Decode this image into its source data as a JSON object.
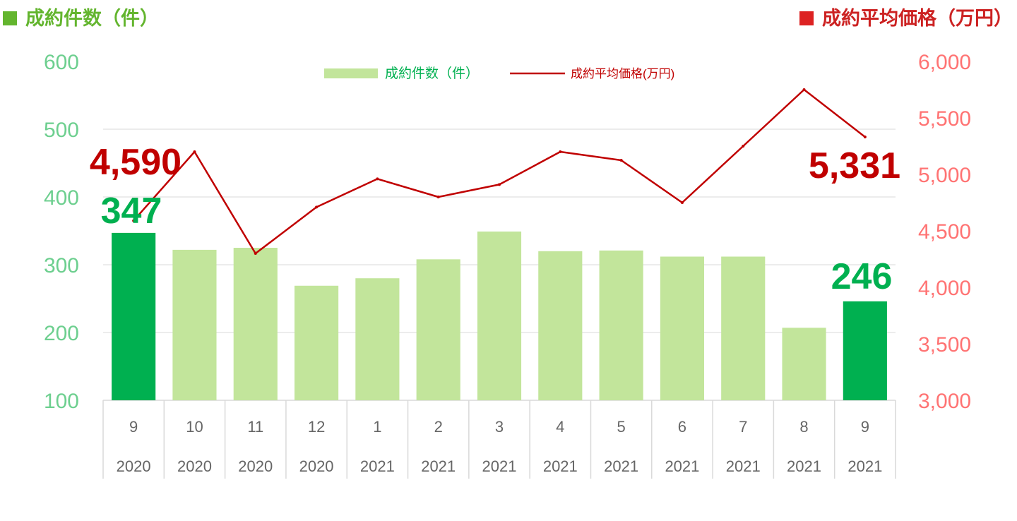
{
  "header": {
    "left_title": "成約件数（件）",
    "right_title": "成約平均価格（万円）"
  },
  "colors": {
    "bar_light": "#c2e59b",
    "bar_highlight": "#00b050",
    "line": "#c00000",
    "left_axis": "#6dcf8f",
    "right_axis": "#ff7373",
    "header_left": "#63b52e",
    "header_right": "#dd2222",
    "grid": "#d9d9d9"
  },
  "chart_data": {
    "type": "bar",
    "categories": [
      [
        "9",
        "2020"
      ],
      [
        "10",
        "2020"
      ],
      [
        "11",
        "2020"
      ],
      [
        "12",
        "2020"
      ],
      [
        "1",
        "2021"
      ],
      [
        "2",
        "2021"
      ],
      [
        "3",
        "2021"
      ],
      [
        "4",
        "2021"
      ],
      [
        "5",
        "2021"
      ],
      [
        "6",
        "2021"
      ],
      [
        "7",
        "2021"
      ],
      [
        "8",
        "2021"
      ],
      [
        "9",
        "2021"
      ]
    ],
    "series": [
      {
        "name": "成約件数（件）",
        "type": "bar",
        "axis": "left",
        "values": [
          347,
          322,
          325,
          269,
          280,
          308,
          349,
          320,
          321,
          312,
          312,
          207,
          246
        ],
        "highlight": [
          0,
          12
        ]
      },
      {
        "name": "成約平均価格(万円)",
        "type": "line",
        "axis": "right",
        "values": [
          4590,
          5200,
          4300,
          4710,
          4960,
          4800,
          4910,
          5200,
          5125,
          4750,
          5250,
          5750,
          5331
        ]
      }
    ],
    "y_left": {
      "min": 100,
      "max": 600,
      "ticks": [
        "100",
        "200",
        "300",
        "400",
        "500",
        "600"
      ]
    },
    "y_right": {
      "min": 3000,
      "max": 6000,
      "ticks": [
        "3,000",
        "3,500",
        "4,000",
        "4,500",
        "5,000",
        "5,500",
        "6,000"
      ]
    },
    "annotations": {
      "first_bar_label": "347",
      "last_bar_label": "246",
      "first_line_label": "4,590",
      "last_line_label": "5,331"
    },
    "legend": {
      "position": "top-center"
    },
    "grid": true
  }
}
